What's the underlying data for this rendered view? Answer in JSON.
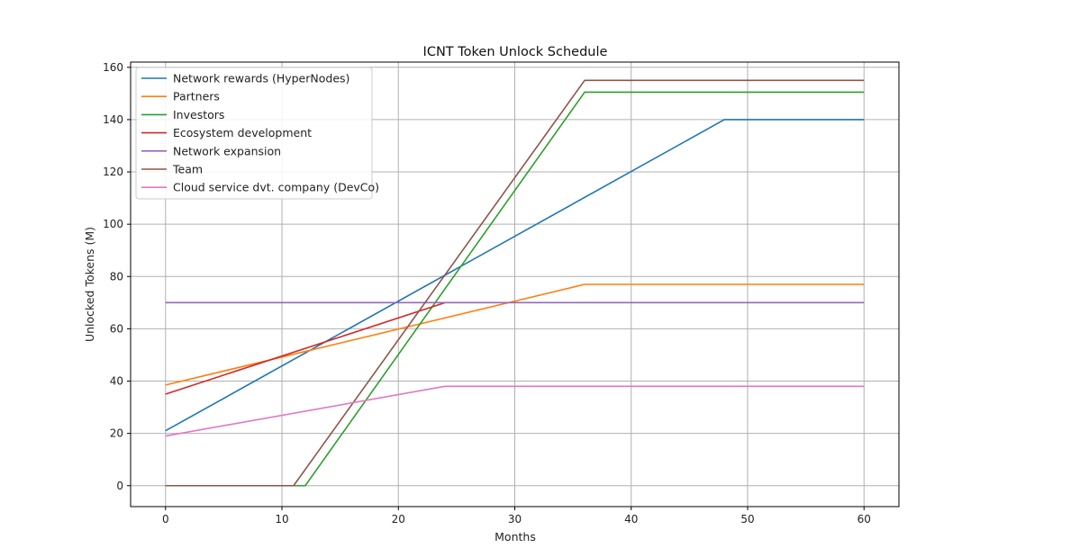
{
  "chart_data": {
    "type": "line",
    "title": "ICNT Token Unlock Schedule",
    "xlabel": "Months",
    "ylabel": "Unlocked Tokens (M)",
    "xlim": [
      -3,
      63
    ],
    "ylim": [
      -8,
      162
    ],
    "xticks": [
      0,
      10,
      20,
      30,
      40,
      50,
      60
    ],
    "yticks": [
      0,
      20,
      40,
      60,
      80,
      100,
      120,
      140,
      160
    ],
    "grid": true,
    "legend_position": "top-left",
    "series": [
      {
        "name": "Network rewards (HyperNodes)",
        "color": "#1f77b4",
        "x": [
          0,
          48,
          60
        ],
        "y": [
          21,
          140,
          140
        ]
      },
      {
        "name": "Partners",
        "color": "#ff7f0e",
        "x": [
          0,
          36,
          60
        ],
        "y": [
          38.5,
          77,
          77
        ]
      },
      {
        "name": "Investors",
        "color": "#2ca02c",
        "x": [
          0,
          12,
          36,
          60
        ],
        "y": [
          0,
          0,
          150.5,
          150.5
        ]
      },
      {
        "name": "Ecosystem development",
        "color": "#d62728",
        "x": [
          0,
          24
        ],
        "y": [
          35,
          70
        ]
      },
      {
        "name": "Network expansion",
        "color": "#9467bd",
        "x": [
          0,
          60
        ],
        "y": [
          70,
          70
        ]
      },
      {
        "name": "Team",
        "color": "#8c564b",
        "x": [
          0,
          11,
          36,
          60
        ],
        "y": [
          0,
          0,
          155,
          155
        ]
      },
      {
        "name": "Cloud service dvt. company (DevCo)",
        "color": "#e377c2",
        "x": [
          0,
          24,
          60
        ],
        "y": [
          19,
          38,
          38
        ]
      }
    ]
  }
}
